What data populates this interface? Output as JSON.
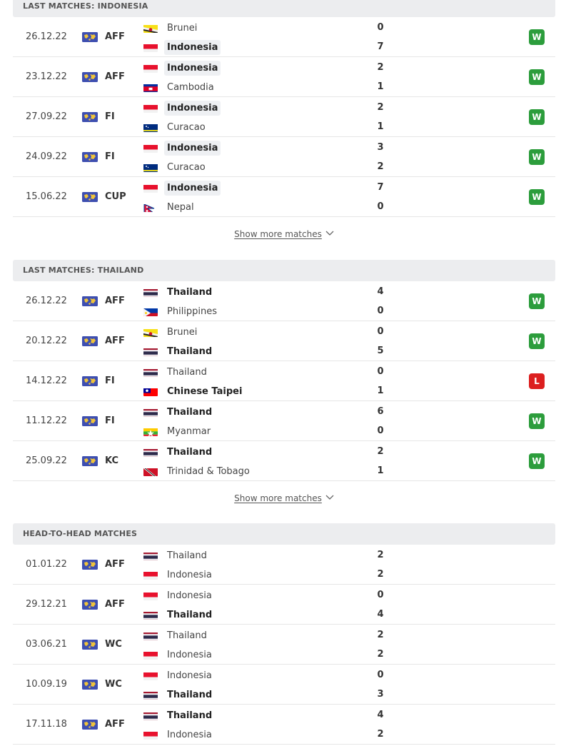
{
  "sections": [
    {
      "title": "LAST MATCHES: INDONESIA",
      "more_label": "Show more matches",
      "matches": [
        {
          "date": "26.12.22",
          "comp": "AFF",
          "home": "Brunei",
          "home_flag": "brunei",
          "away": "Indonesia",
          "away_flag": "indonesia",
          "home_score": "0",
          "away_score": "7",
          "winner": "away",
          "highlight": "away",
          "result": "W"
        },
        {
          "date": "23.12.22",
          "comp": "AFF",
          "home": "Indonesia",
          "home_flag": "indonesia",
          "away": "Cambodia",
          "away_flag": "cambodia",
          "home_score": "2",
          "away_score": "1",
          "winner": "home",
          "highlight": "home",
          "result": "W"
        },
        {
          "date": "27.09.22",
          "comp": "FI",
          "home": "Indonesia",
          "home_flag": "indonesia",
          "away": "Curacao",
          "away_flag": "curacao",
          "home_score": "2",
          "away_score": "1",
          "winner": "home",
          "highlight": "home",
          "result": "W"
        },
        {
          "date": "24.09.22",
          "comp": "FI",
          "home": "Indonesia",
          "home_flag": "indonesia",
          "away": "Curacao",
          "away_flag": "curacao",
          "home_score": "3",
          "away_score": "2",
          "winner": "home",
          "highlight": "home",
          "result": "W"
        },
        {
          "date": "15.06.22",
          "comp": "CUP",
          "home": "Indonesia",
          "home_flag": "indonesia",
          "away": "Nepal",
          "away_flag": "nepal",
          "home_score": "7",
          "away_score": "0",
          "winner": "home",
          "highlight": "home",
          "result": "W"
        }
      ]
    },
    {
      "title": "LAST MATCHES: THAILAND",
      "more_label": "Show more matches",
      "matches": [
        {
          "date": "26.12.22",
          "comp": "AFF",
          "home": "Thailand",
          "home_flag": "thailand",
          "away": "Philippines",
          "away_flag": "philippines",
          "home_score": "4",
          "away_score": "0",
          "winner": "home",
          "highlight": "",
          "result": "W"
        },
        {
          "date": "20.12.22",
          "comp": "AFF",
          "home": "Brunei",
          "home_flag": "brunei",
          "away": "Thailand",
          "away_flag": "thailand",
          "home_score": "0",
          "away_score": "5",
          "winner": "away",
          "highlight": "",
          "result": "W"
        },
        {
          "date": "14.12.22",
          "comp": "FI",
          "home": "Thailand",
          "home_flag": "thailand",
          "away": "Chinese Taipei",
          "away_flag": "taipei",
          "home_score": "0",
          "away_score": "1",
          "winner": "away",
          "highlight": "",
          "result": "L"
        },
        {
          "date": "11.12.22",
          "comp": "FI",
          "home": "Thailand",
          "home_flag": "thailand",
          "away": "Myanmar",
          "away_flag": "myanmar",
          "home_score": "6",
          "away_score": "0",
          "winner": "home",
          "highlight": "",
          "result": "W"
        },
        {
          "date": "25.09.22",
          "comp": "KC",
          "home": "Thailand",
          "home_flag": "thailand",
          "away": "Trinidad & Tobago",
          "away_flag": "trinidad",
          "home_score": "2",
          "away_score": "1",
          "winner": "home",
          "highlight": "",
          "result": "W"
        }
      ]
    },
    {
      "title": "HEAD-TO-HEAD MATCHES",
      "more_label": "",
      "matches": [
        {
          "date": "01.01.22",
          "comp": "AFF",
          "home": "Thailand",
          "home_flag": "thailand",
          "away": "Indonesia",
          "away_flag": "indonesia",
          "home_score": "2",
          "away_score": "2",
          "winner": "",
          "highlight": "",
          "result": ""
        },
        {
          "date": "29.12.21",
          "comp": "AFF",
          "home": "Indonesia",
          "home_flag": "indonesia",
          "away": "Thailand",
          "away_flag": "thailand",
          "home_score": "0",
          "away_score": "4",
          "winner": "away",
          "highlight": "",
          "result": ""
        },
        {
          "date": "03.06.21",
          "comp": "WC",
          "home": "Thailand",
          "home_flag": "thailand",
          "away": "Indonesia",
          "away_flag": "indonesia",
          "home_score": "2",
          "away_score": "2",
          "winner": "",
          "highlight": "",
          "result": ""
        },
        {
          "date": "10.09.19",
          "comp": "WC",
          "home": "Indonesia",
          "home_flag": "indonesia",
          "away": "Thailand",
          "away_flag": "thailand",
          "home_score": "0",
          "away_score": "3",
          "winner": "away",
          "highlight": "",
          "result": ""
        },
        {
          "date": "17.11.18",
          "comp": "AFF",
          "home": "Thailand",
          "home_flag": "thailand",
          "away": "Indonesia",
          "away_flag": "indonesia",
          "home_score": "4",
          "away_score": "2",
          "winner": "home",
          "highlight": "",
          "result": ""
        }
      ]
    }
  ],
  "colors": {
    "win": "#2c9d3c",
    "loss": "#dc1f1f",
    "header_bg": "#ecedef"
  },
  "icons": {
    "competition": "asia-region-flag-icon",
    "expand": "chevron-down-icon"
  }
}
